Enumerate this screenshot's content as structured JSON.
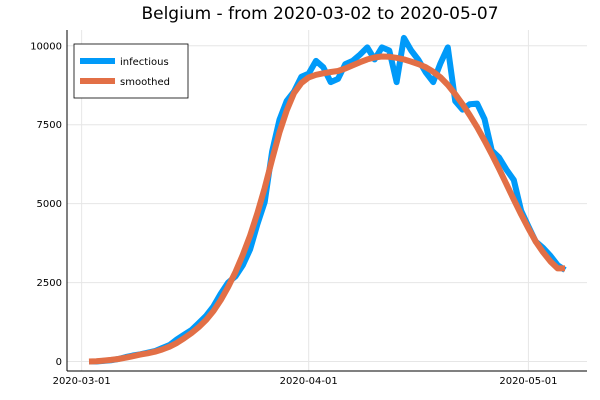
{
  "chart_data": {
    "type": "line",
    "title": "Belgium - from 2020-03-02 to 2020-05-07",
    "xlabel": "",
    "ylabel": "",
    "x_start": "2020-03-02",
    "x_end": "2020-05-07",
    "xticks": [
      "2020-03-01",
      "2020-04-01",
      "2020-05-01"
    ],
    "yticks": [
      0,
      2500,
      5000,
      7500,
      10000
    ],
    "ylim": [
      -300,
      10500
    ],
    "xlim": [
      "2020-02-28",
      "2020-05-09"
    ],
    "grid": true,
    "legend_position": "top-left",
    "series": [
      {
        "name": "infectious",
        "color": "#009af9",
        "values": [
          0,
          0,
          20,
          40,
          80,
          140,
          190,
          230,
          280,
          330,
          430,
          520,
          700,
          850,
          1000,
          1220,
          1450,
          1750,
          2150,
          2500,
          2700,
          3050,
          3550,
          4350,
          5050,
          6650,
          7650,
          8250,
          8550,
          9020,
          9120,
          9520,
          9320,
          8850,
          8950,
          9420,
          9520,
          9720,
          9950,
          9570,
          9950,
          9850,
          8850,
          10250,
          9850,
          9550,
          9150,
          8850,
          9450,
          9950,
          8250,
          7980,
          8150,
          8170,
          7680,
          6680,
          6460,
          6080,
          5750,
          4780,
          4280,
          3800,
          3600,
          3350,
          3050,
          2900
        ]
      },
      {
        "name": "smoothed",
        "color": "#e26f46",
        "values": [
          0,
          10,
          30,
          50,
          80,
          120,
          170,
          220,
          260,
          310,
          380,
          470,
          590,
          740,
          900,
          1090,
          1320,
          1600,
          1950,
          2360,
          2840,
          3380,
          3990,
          4700,
          5500,
          6400,
          7250,
          7950,
          8500,
          8820,
          9000,
          9080,
          9130,
          9170,
          9200,
          9280,
          9380,
          9480,
          9570,
          9630,
          9660,
          9650,
          9620,
          9570,
          9500,
          9420,
          9320,
          9180,
          9000,
          8760,
          8470,
          8150,
          7800,
          7420,
          7000,
          6560,
          6100,
          5620,
          5130,
          4660,
          4220,
          3800,
          3460,
          3170,
          2950,
          2950
        ]
      }
    ]
  }
}
